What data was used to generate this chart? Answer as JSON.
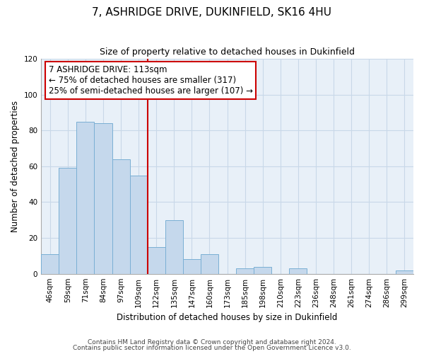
{
  "title": "7, ASHRIDGE DRIVE, DUKINFIELD, SK16 4HU",
  "subtitle": "Size of property relative to detached houses in Dukinfield",
  "xlabel": "Distribution of detached houses by size in Dukinfield",
  "ylabel": "Number of detached properties",
  "bin_labels": [
    "46sqm",
    "59sqm",
    "71sqm",
    "84sqm",
    "97sqm",
    "109sqm",
    "122sqm",
    "135sqm",
    "147sqm",
    "160sqm",
    "173sqm",
    "185sqm",
    "198sqm",
    "210sqm",
    "223sqm",
    "236sqm",
    "248sqm",
    "261sqm",
    "274sqm",
    "286sqm",
    "299sqm"
  ],
  "bar_heights": [
    11,
    59,
    85,
    84,
    64,
    55,
    15,
    30,
    8,
    11,
    0,
    3,
    4,
    0,
    3,
    0,
    0,
    0,
    0,
    0,
    2
  ],
  "bar_color": "#c5d8ec",
  "bar_edge_color": "#7aafd4",
  "highlight_line_index": 6,
  "highlight_line_color": "#cc0000",
  "ylim": [
    0,
    120
  ],
  "yticks": [
    0,
    20,
    40,
    60,
    80,
    100,
    120
  ],
  "annotation_title": "7 ASHRIDGE DRIVE: 113sqm",
  "annotation_line1": "← 75% of detached houses are smaller (317)",
  "annotation_line2": "25% of semi-detached houses are larger (107) →",
  "annotation_box_color": "#ffffff",
  "annotation_box_edge": "#cc0000",
  "footer_line1": "Contains HM Land Registry data © Crown copyright and database right 2024.",
  "footer_line2": "Contains public sector information licensed under the Open Government Licence v3.0.",
  "background_color": "#ffffff",
  "plot_bg_color": "#e8f0f8",
  "grid_color": "#c8d8e8"
}
